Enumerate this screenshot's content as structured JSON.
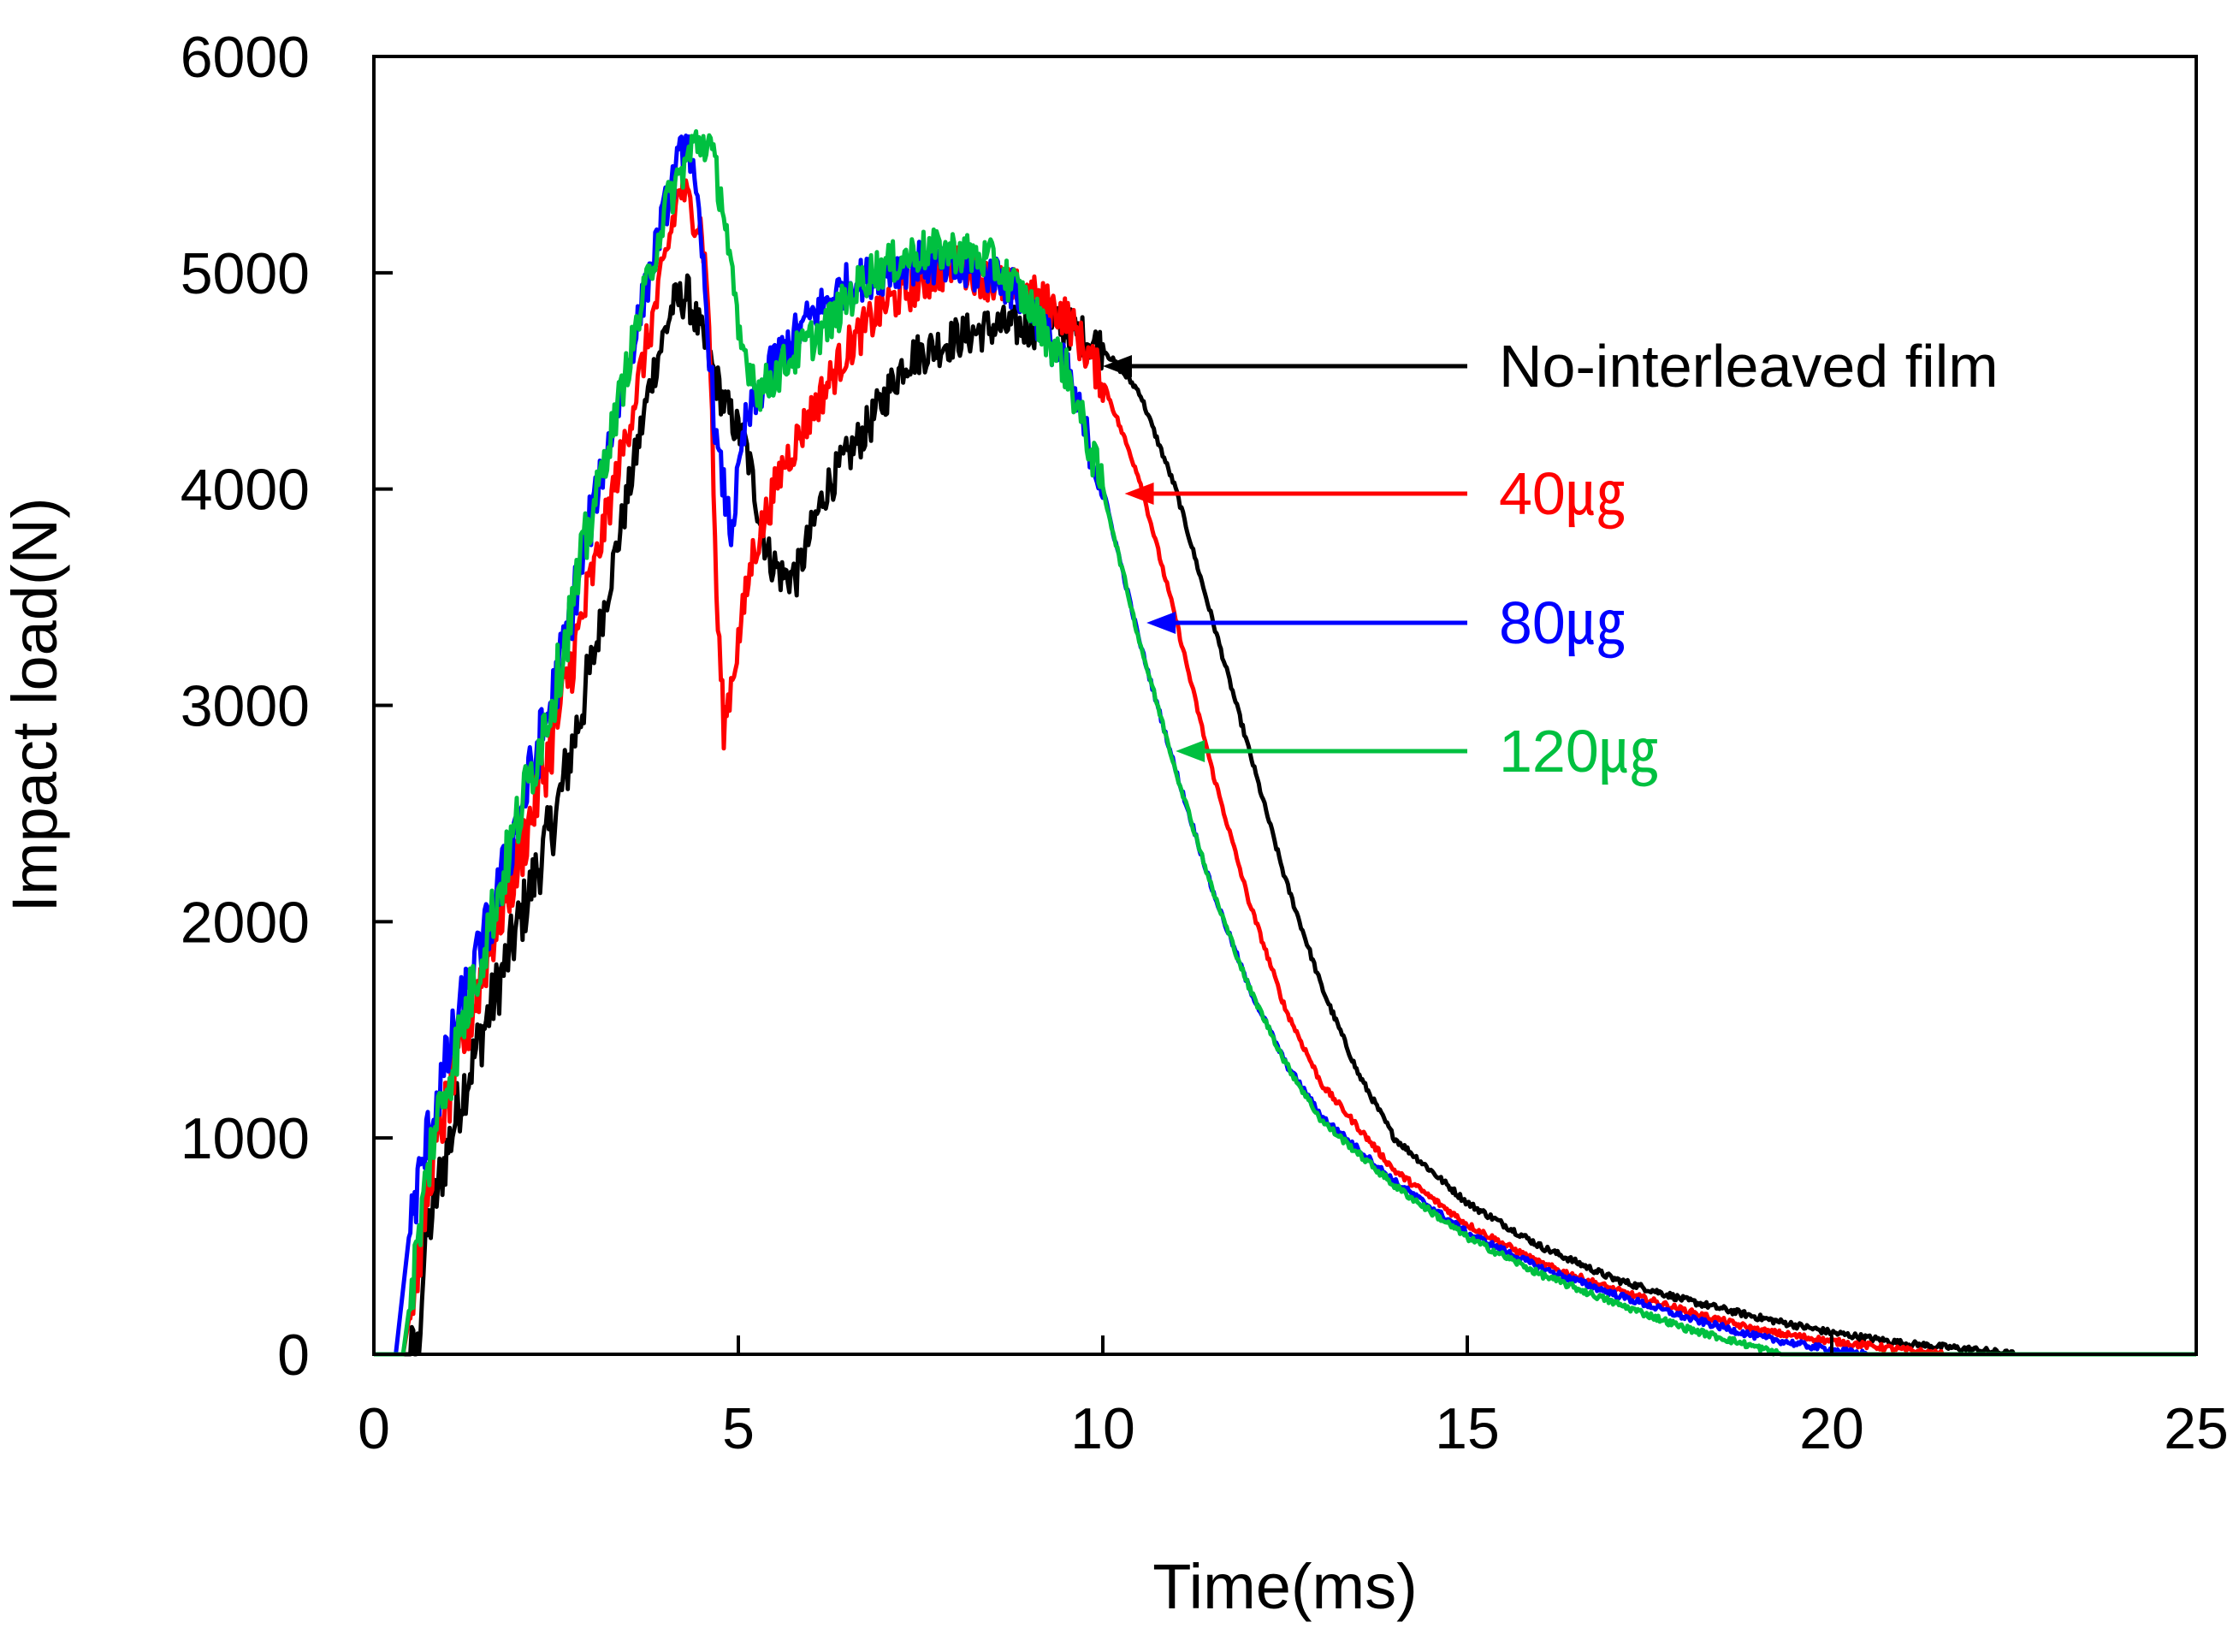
{
  "chart_data": {
    "type": "line",
    "title": "",
    "xlabel": "Time(ms)",
    "ylabel": "Impact load(N)",
    "xlim": [
      0,
      25
    ],
    "ylim": [
      0,
      6000
    ],
    "xticks": [
      0,
      5,
      10,
      15,
      20,
      25
    ],
    "yticks": [
      0,
      1000,
      2000,
      3000,
      4000,
      5000,
      6000
    ],
    "grid": false,
    "series": [
      {
        "name": "No-interleaved film",
        "color": "#000000",
        "points": [
          [
            0,
            0
          ],
          [
            0.6,
            0
          ],
          [
            0.7,
            500
          ],
          [
            0.9,
            800
          ],
          [
            1.2,
            1200
          ],
          [
            1.6,
            1600
          ],
          [
            2.0,
            2000
          ],
          [
            2.5,
            2500
          ],
          [
            3.0,
            3200
          ],
          [
            3.5,
            4000
          ],
          [
            3.8,
            4500
          ],
          [
            4.1,
            4850
          ],
          [
            4.3,
            4900
          ],
          [
            4.5,
            4700
          ],
          [
            4.8,
            4400
          ],
          [
            5.1,
            4200
          ],
          [
            5.4,
            3700
          ],
          [
            5.6,
            3600
          ],
          [
            5.8,
            3600
          ],
          [
            6.2,
            4000
          ],
          [
            6.8,
            4300
          ],
          [
            7.3,
            4600
          ],
          [
            8.0,
            4700
          ],
          [
            8.5,
            4750
          ],
          [
            9.0,
            4750
          ],
          [
            9.5,
            4750
          ],
          [
            10.0,
            4650
          ],
          [
            10.5,
            4450
          ],
          [
            11.0,
            4000
          ],
          [
            11.5,
            3400
          ],
          [
            12.0,
            2800
          ],
          [
            12.5,
            2200
          ],
          [
            13.0,
            1700
          ],
          [
            13.5,
            1300
          ],
          [
            14.0,
            1000
          ],
          [
            15.0,
            700
          ],
          [
            16.0,
            500
          ],
          [
            17.0,
            350
          ],
          [
            18.0,
            250
          ],
          [
            19.0,
            170
          ],
          [
            20.0,
            100
          ],
          [
            21.0,
            50
          ],
          [
            22.0,
            20
          ],
          [
            22.5,
            0
          ],
          [
            25,
            0
          ]
        ]
      },
      {
        "name": "40㎍",
        "color": "#ff0000",
        "points": [
          [
            0,
            0
          ],
          [
            0.4,
            0
          ],
          [
            0.6,
            400
          ],
          [
            0.8,
            900
          ],
          [
            1.2,
            1400
          ],
          [
            1.6,
            1900
          ],
          [
            2.0,
            2300
          ],
          [
            2.5,
            2900
          ],
          [
            3.0,
            3600
          ],
          [
            3.5,
            4300
          ],
          [
            3.9,
            4900
          ],
          [
            4.2,
            5400
          ],
          [
            4.5,
            5200
          ],
          [
            4.6,
            4800
          ],
          [
            4.7,
            3500
          ],
          [
            4.8,
            2900
          ],
          [
            5.0,
            3300
          ],
          [
            5.2,
            3700
          ],
          [
            5.6,
            4100
          ],
          [
            6.0,
            4350
          ],
          [
            6.5,
            4650
          ],
          [
            7.0,
            4850
          ],
          [
            7.5,
            4950
          ],
          [
            8.0,
            5050
          ],
          [
            8.5,
            4950
          ],
          [
            9.0,
            4900
          ],
          [
            9.5,
            4800
          ],
          [
            10.0,
            4500
          ],
          [
            10.5,
            4050
          ],
          [
            11.0,
            3400
          ],
          [
            11.5,
            2700
          ],
          [
            12.0,
            2100
          ],
          [
            12.5,
            1600
          ],
          [
            13.0,
            1250
          ],
          [
            14.0,
            850
          ],
          [
            15.0,
            600
          ],
          [
            16.0,
            420
          ],
          [
            17.0,
            300
          ],
          [
            18.0,
            200
          ],
          [
            19.0,
            110
          ],
          [
            20.0,
            60
          ],
          [
            21.0,
            20
          ],
          [
            21.5,
            0
          ],
          [
            25,
            0
          ]
        ]
      },
      {
        "name": "80㎍",
        "color": "#0000ff",
        "points": [
          [
            0,
            0
          ],
          [
            0.3,
            0
          ],
          [
            0.5,
            600
          ],
          [
            0.8,
            1100
          ],
          [
            1.2,
            1600
          ],
          [
            1.6,
            2000
          ],
          [
            2.0,
            2500
          ],
          [
            2.5,
            3100
          ],
          [
            3.0,
            3900
          ],
          [
            3.5,
            4600
          ],
          [
            4.0,
            5300
          ],
          [
            4.3,
            5650
          ],
          [
            4.5,
            5100
          ],
          [
            4.7,
            4200
          ],
          [
            4.9,
            3800
          ],
          [
            5.1,
            4300
          ],
          [
            5.5,
            4600
          ],
          [
            6.0,
            4800
          ],
          [
            6.5,
            4950
          ],
          [
            7.0,
            5000
          ],
          [
            7.5,
            5050
          ],
          [
            8.0,
            5000
          ],
          [
            8.5,
            5000
          ],
          [
            9.0,
            4850
          ],
          [
            9.5,
            4550
          ],
          [
            10.0,
            4000
          ],
          [
            10.5,
            3300
          ],
          [
            11.0,
            2700
          ],
          [
            11.5,
            2150
          ],
          [
            12.0,
            1700
          ],
          [
            12.5,
            1350
          ],
          [
            13.0,
            1100
          ],
          [
            14.0,
            800
          ],
          [
            15.0,
            560
          ],
          [
            16.0,
            400
          ],
          [
            17.0,
            280
          ],
          [
            18.0,
            170
          ],
          [
            19.0,
            80
          ],
          [
            20.0,
            20
          ],
          [
            20.5,
            0
          ],
          [
            25,
            0
          ]
        ]
      },
      {
        "name": "120㎍",
        "color": "#00c040",
        "points": [
          [
            0,
            0
          ],
          [
            0.4,
            0
          ],
          [
            0.6,
            500
          ],
          [
            0.8,
            1000
          ],
          [
            1.2,
            1500
          ],
          [
            1.6,
            2000
          ],
          [
            2.0,
            2500
          ],
          [
            2.5,
            3100
          ],
          [
            3.0,
            3900
          ],
          [
            3.5,
            4600
          ],
          [
            4.0,
            5300
          ],
          [
            4.4,
            5600
          ],
          [
            4.6,
            5600
          ],
          [
            4.8,
            5300
          ],
          [
            5.0,
            4700
          ],
          [
            5.3,
            4450
          ],
          [
            5.7,
            4600
          ],
          [
            6.2,
            4750
          ],
          [
            6.8,
            5000
          ],
          [
            7.5,
            5100
          ],
          [
            8.0,
            5100
          ],
          [
            8.5,
            5050
          ],
          [
            9.0,
            4850
          ],
          [
            9.5,
            4550
          ],
          [
            10.0,
            4000
          ],
          [
            10.5,
            3300
          ],
          [
            11.0,
            2700
          ],
          [
            11.5,
            2150
          ],
          [
            12.0,
            1700
          ],
          [
            12.5,
            1350
          ],
          [
            13.0,
            1080
          ],
          [
            14.0,
            780
          ],
          [
            15.0,
            540
          ],
          [
            16.0,
            370
          ],
          [
            17.0,
            240
          ],
          [
            18.0,
            120
          ],
          [
            19.0,
            30
          ],
          [
            19.3,
            0
          ],
          [
            25,
            0
          ]
        ]
      }
    ],
    "annotations": [
      {
        "label": "No-interleaved film",
        "series": 0,
        "arrow_to": [
          10.0,
          4650
        ],
        "color": "#000000"
      },
      {
        "label": "40㎍",
        "series": 1,
        "arrow_to": [
          10.3,
          4000
        ],
        "color": "#ff0000"
      },
      {
        "label": "80㎍",
        "series": 2,
        "arrow_to": [
          10.6,
          3400
        ],
        "color": "#0000ff"
      },
      {
        "label": "120㎍",
        "series": 3,
        "arrow_to": [
          11.0,
          2800
        ],
        "color": "#00c040"
      }
    ]
  }
}
